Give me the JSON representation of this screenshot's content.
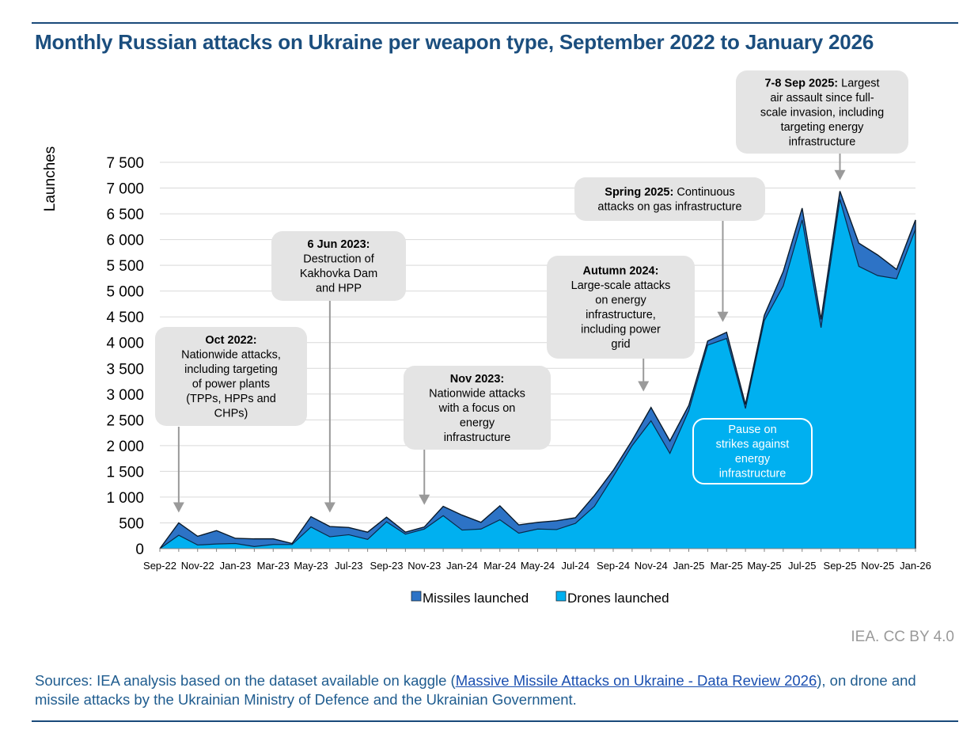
{
  "title": "Monthly Russian attacks on Ukraine per weapon type, September 2022 to January 2026",
  "credit": "IEA. CC BY 4.0",
  "sources": {
    "prefix": "Sources: IEA analysis based on the dataset available on kaggle (",
    "link_text": "Massive Missile Attacks on Ukraine - Data Review 2026",
    "suffix": "), on drone and missile attacks by the Ukrainian Ministry of Defence and the Ukrainian Government."
  },
  "colors": {
    "missiles": "#2d73c6",
    "drones": "#00b0f0",
    "annotation_box": "#e4e4e4",
    "arrow": "#9a9a9a",
    "grid": "#d9d9d9"
  },
  "chart_data": {
    "type": "area",
    "stacked": true,
    "ylabel": "Launches",
    "ylim": [
      0,
      7500
    ],
    "yticks": [
      0,
      500,
      1000,
      1500,
      2000,
      2500,
      3000,
      3500,
      4000,
      4500,
      5000,
      5500,
      6000,
      6500,
      7000,
      7500
    ],
    "ytick_labels": [
      "0",
      "500",
      "1 000",
      "1 500",
      "2 000",
      "2 500",
      "3 000",
      "3 500",
      "4 000",
      "4 500",
      "5 000",
      "5 500",
      "6 000",
      "6 500",
      "7 000",
      "7 500"
    ],
    "x": [
      "Sep-22",
      "Oct-22",
      "Nov-22",
      "Dec-22",
      "Jan-23",
      "Feb-23",
      "Mar-23",
      "Apr-23",
      "May-23",
      "Jun-23",
      "Jul-23",
      "Aug-23",
      "Sep-23",
      "Oct-23",
      "Nov-23",
      "Dec-23",
      "Jan-24",
      "Feb-24",
      "Mar-24",
      "Apr-24",
      "May-24",
      "Jun-24",
      "Jul-24",
      "Aug-24",
      "Sep-24",
      "Oct-24",
      "Nov-24",
      "Dec-24",
      "Jan-25",
      "Feb-25",
      "Mar-25",
      "Apr-25",
      "May-25",
      "Jun-25",
      "Jul-25",
      "Aug-25",
      "Sep-25",
      "Oct-25",
      "Nov-25",
      "Dec-25",
      "Jan-26"
    ],
    "xtick_labels": [
      "Sep-22",
      "Nov-22",
      "Jan-23",
      "Mar-23",
      "May-23",
      "Jul-23",
      "Sep-23",
      "Nov-23",
      "Jan-24",
      "Mar-24",
      "May-24",
      "Jul-24",
      "Sep-24",
      "Nov-24",
      "Jan-25",
      "Mar-25",
      "May-25",
      "Jul-25",
      "Sep-25",
      "Nov-25",
      "Jan-26"
    ],
    "series": [
      {
        "name": "Drones launched",
        "values": [
          0,
          260,
          70,
          90,
          100,
          40,
          80,
          80,
          420,
          230,
          270,
          180,
          520,
          280,
          380,
          640,
          360,
          380,
          560,
          300,
          380,
          370,
          490,
          820,
          1400,
          2000,
          2480,
          1850,
          2680,
          3950,
          4080,
          2720,
          4430,
          5100,
          6380,
          4290,
          6780,
          5480,
          5300,
          5240,
          6200
        ]
      },
      {
        "name": "Missiles launched",
        "values": [
          0,
          240,
          170,
          260,
          100,
          150,
          110,
          20,
          200,
          200,
          140,
          140,
          90,
          40,
          40,
          180,
          290,
          130,
          270,
          160,
          130,
          170,
          110,
          210,
          120,
          100,
          260,
          240,
          100,
          80,
          120,
          80,
          100,
          280,
          230,
          160,
          160,
          450,
          400,
          180,
          180
        ]
      }
    ],
    "legend": [
      "Missiles launched",
      "Drones launched"
    ],
    "legend_position": "bottom",
    "annotations": [
      {
        "bold": "Oct 2022:",
        "lines": [
          "Nationwide attacks,",
          "including targeting",
          "of power plants",
          "(TPPs, HPPs and",
          "CHPs)"
        ],
        "target_index": 1,
        "arrow_tip_value": 700
      },
      {
        "bold": "6 Jun 2023:",
        "lines": [
          "Destruction of",
          "Kakhovka Dam",
          "and HPP"
        ],
        "target_index": 9,
        "arrow_tip_value": 700
      },
      {
        "bold": "Nov 2023:",
        "lines": [
          "Nationwide attacks",
          "with a focus on",
          "energy",
          "infrastructure"
        ],
        "target_index": 14,
        "arrow_tip_value": 850
      },
      {
        "bold": "Autumn 2024:",
        "lines": [
          "Large-scale attacks",
          "on energy",
          "infrastructure,",
          "including power",
          "grid"
        ],
        "target_index": 25.6,
        "arrow_tip_value": 3050
      },
      {
        "bold": "Spring 2025:",
        "inline": " Continuous",
        "lines": [
          "attacks on gas infrastructure"
        ],
        "target_index": 29.8,
        "arrow_tip_value": 4400
      },
      {
        "bold": "7-8 Sep 2025:",
        "inline": " Largest",
        "lines": [
          "air assault since full-",
          "scale invasion, including",
          "targeting energy",
          "infrastructure"
        ],
        "target_index": 36,
        "arrow_tip_value": 7150
      },
      {
        "bold": "",
        "lines": [
          "Pause on",
          "strikes against",
          "energy",
          "infrastructure"
        ],
        "style": "outline-white"
      }
    ]
  }
}
